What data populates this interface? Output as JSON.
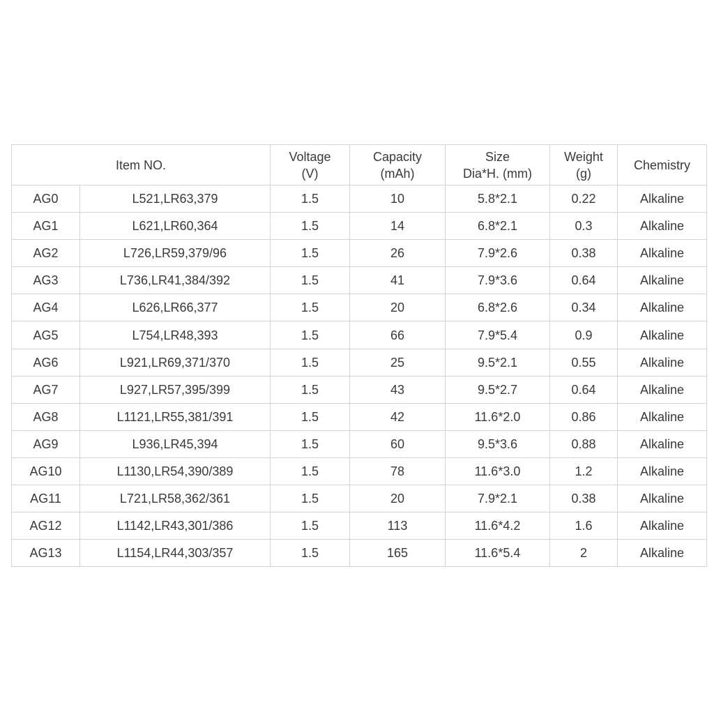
{
  "table": {
    "headers": {
      "item_no": "Item NO.",
      "voltage": [
        "Voltage",
        "(V)"
      ],
      "capacity": [
        "Capacity",
        "(mAh)"
      ],
      "size": [
        "Size",
        "Dia*H. (mm)"
      ],
      "weight": [
        "Weight",
        "(g)"
      ],
      "chemistry": "Chemistry"
    },
    "rows": [
      {
        "ag": "AG0",
        "equiv": "L521,LR63,379",
        "voltage": "1.5",
        "capacity": "10",
        "size": "5.8*2.1",
        "weight": "0.22",
        "chemistry": "Alkaline"
      },
      {
        "ag": "AG1",
        "equiv": "L621,LR60,364",
        "voltage": "1.5",
        "capacity": "14",
        "size": "6.8*2.1",
        "weight": "0.3",
        "chemistry": "Alkaline"
      },
      {
        "ag": "AG2",
        "equiv": "L726,LR59,379/96",
        "voltage": "1.5",
        "capacity": "26",
        "size": "7.9*2.6",
        "weight": "0.38",
        "chemistry": "Alkaline"
      },
      {
        "ag": "AG3",
        "equiv": "L736,LR41,384/392",
        "voltage": "1.5",
        "capacity": "41",
        "size": "7.9*3.6",
        "weight": "0.64",
        "chemistry": "Alkaline"
      },
      {
        "ag": "AG4",
        "equiv": "L626,LR66,377",
        "voltage": "1.5",
        "capacity": "20",
        "size": "6.8*2.6",
        "weight": "0.34",
        "chemistry": "Alkaline"
      },
      {
        "ag": "AG5",
        "equiv": "L754,LR48,393",
        "voltage": "1.5",
        "capacity": "66",
        "size": "7.9*5.4",
        "weight": "0.9",
        "chemistry": "Alkaline"
      },
      {
        "ag": "AG6",
        "equiv": "L921,LR69,371/370",
        "voltage": "1.5",
        "capacity": "25",
        "size": "9.5*2.1",
        "weight": "0.55",
        "chemistry": "Alkaline"
      },
      {
        "ag": "AG7",
        "equiv": "L927,LR57,395/399",
        "voltage": "1.5",
        "capacity": "43",
        "size": "9.5*2.7",
        "weight": "0.64",
        "chemistry": "Alkaline"
      },
      {
        "ag": "AG8",
        "equiv": "L1121,LR55,381/391",
        "voltage": "1.5",
        "capacity": "42",
        "size": "11.6*2.0",
        "weight": "0.86",
        "chemistry": "Alkaline"
      },
      {
        "ag": "AG9",
        "equiv": "L936,LR45,394",
        "voltage": "1.5",
        "capacity": "60",
        "size": "9.5*3.6",
        "weight": "0.88",
        "chemistry": "Alkaline"
      },
      {
        "ag": "AG10",
        "equiv": "L1130,LR54,390/389",
        "voltage": "1.5",
        "capacity": "78",
        "size": "11.6*3.0",
        "weight": "1.2",
        "chemistry": "Alkaline"
      },
      {
        "ag": "AG11",
        "equiv": "L721,LR58,362/361",
        "voltage": "1.5",
        "capacity": "20",
        "size": "7.9*2.1",
        "weight": "0.38",
        "chemistry": "Alkaline"
      },
      {
        "ag": "AG12",
        "equiv": "L1142,LR43,301/386",
        "voltage": "1.5",
        "capacity": "113",
        "size": "11.6*4.2",
        "weight": "1.6",
        "chemistry": "Alkaline"
      },
      {
        "ag": "AG13",
        "equiv": "L1154,LR44,303/357",
        "voltage": "1.5",
        "capacity": "165",
        "size": "11.6*5.4",
        "weight": "2",
        "chemistry": "Alkaline"
      }
    ]
  }
}
